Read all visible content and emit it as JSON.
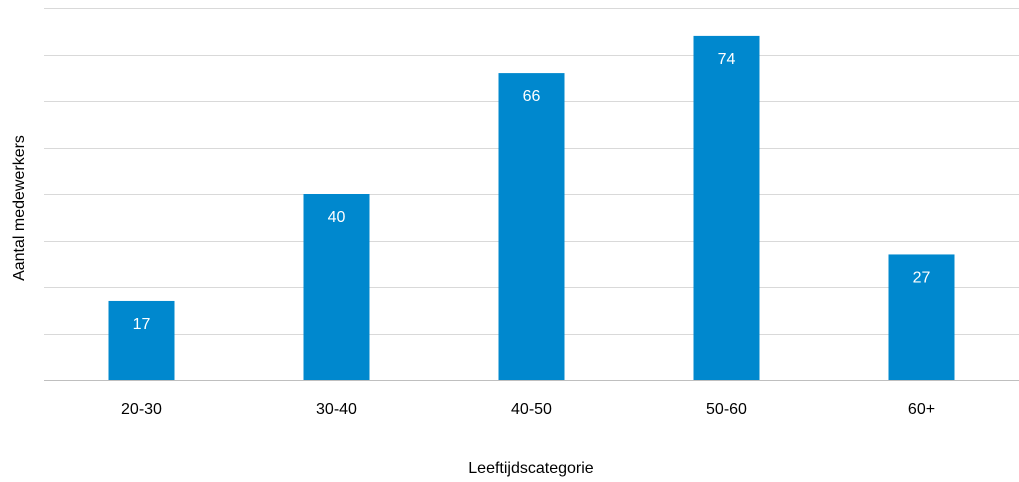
{
  "chart_data": {
    "type": "bar",
    "categories": [
      "20-30",
      "30-40",
      "40-50",
      "50-60",
      "60+"
    ],
    "values": [
      17,
      40,
      66,
      74,
      27
    ],
    "title": "",
    "xlabel": "Leeftijdscategorie",
    "ylabel": "Aantal medewerkers",
    "ylim": [
      0,
      80
    ],
    "grid": true,
    "gridlines": [
      0,
      10,
      20,
      30,
      40,
      50,
      60,
      70,
      80
    ],
    "data_labels": true,
    "legend": "none",
    "bar_color": "#0088CE",
    "label_color": "#FFFFFF"
  }
}
